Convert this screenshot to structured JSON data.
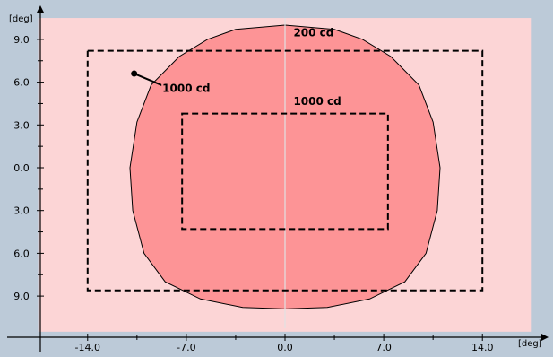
{
  "chart_data": {
    "type": "area",
    "xlabel": "[deg]",
    "ylabel": "[deg]",
    "xlim": [
      -17.5,
      17.5
    ],
    "ylim": [
      -11.5,
      10.5
    ],
    "x_ticks": [
      {
        "value": -14,
        "label": "-14.0"
      },
      {
        "value": -7,
        "label": "-7.0"
      },
      {
        "value": 0,
        "label": "0.0"
      },
      {
        "value": 7,
        "label": "7.0"
      },
      {
        "value": 14,
        "label": "14.0"
      }
    ],
    "y_ticks": [
      {
        "value": 9,
        "label": "9.0"
      },
      {
        "value": 6,
        "label": "6.0"
      },
      {
        "value": 3,
        "label": "3.0"
      },
      {
        "value": 0,
        "label": "0.0"
      },
      {
        "value": -3,
        "label": "3.0"
      },
      {
        "value": -6,
        "label": "6.0"
      },
      {
        "value": -9,
        "label": "9.0"
      }
    ],
    "field": {
      "x": [
        -17.5,
        17.5
      ],
      "y": [
        -11.5,
        10.5
      ],
      "color": "#fcd5d6"
    },
    "contour": {
      "label": "1000 cd",
      "color": "#fd9496",
      "points": [
        [
          -3.5,
          9.7
        ],
        [
          0,
          10.0
        ],
        [
          3.5,
          9.7
        ],
        [
          5.5,
          9.0
        ],
        [
          7.5,
          7.8
        ],
        [
          9.5,
          5.8
        ],
        [
          10.5,
          3.2
        ],
        [
          11.0,
          0.0
        ],
        [
          10.8,
          -3.0
        ],
        [
          10.0,
          -6.0
        ],
        [
          8.5,
          -8.0
        ],
        [
          6.0,
          -9.2
        ],
        [
          3.0,
          -9.8
        ],
        [
          0,
          -9.9
        ],
        [
          -3.0,
          -9.8
        ],
        [
          -6.0,
          -9.2
        ],
        [
          -8.5,
          -8.0
        ],
        [
          -10.0,
          -6.0
        ],
        [
          -10.8,
          -3.0
        ],
        [
          -11.0,
          0.0
        ],
        [
          -10.5,
          3.2
        ],
        [
          -9.5,
          5.8
        ],
        [
          -7.5,
          7.8
        ],
        [
          -5.5,
          9.0
        ]
      ]
    },
    "boxes": [
      {
        "label": "200 cd",
        "x": [
          -14,
          14
        ],
        "y": [
          -8.6,
          8.2
        ],
        "label_at": [
          0.6,
          9.2
        ]
      },
      {
        "label": "1000 cd",
        "x": [
          -7.3,
          7.3
        ],
        "y": [
          -4.3,
          3.8
        ],
        "label_at": [
          0.6,
          4.4
        ]
      }
    ],
    "callout": {
      "label": "1000 cd",
      "dot": [
        -10.7,
        6.6
      ],
      "end": [
        -8.3,
        5.6
      ],
      "label_at": [
        -8.7,
        5.3
      ]
    },
    "colors": {
      "background": "#bccad8",
      "field": "#fcd5d6",
      "contour": "#fd9496",
      "axis": "#000000",
      "center_line": "#d8d8d8"
    }
  }
}
